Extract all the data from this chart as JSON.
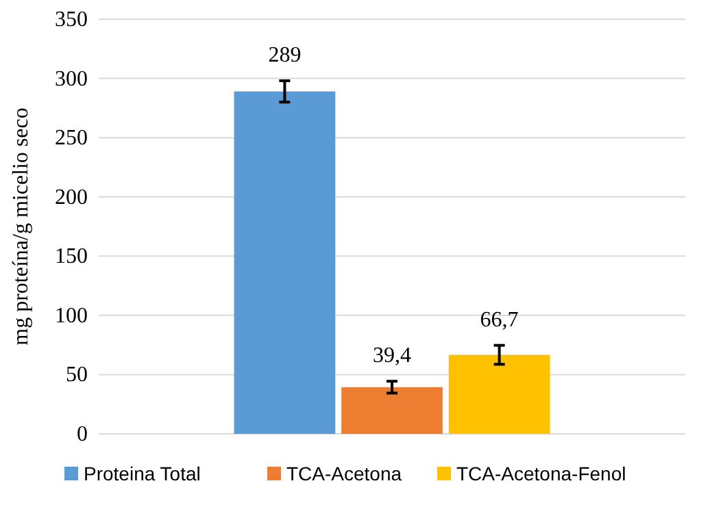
{
  "chart_data": {
    "type": "bar",
    "ylabel": "mg proteína/g micelio seco",
    "categories": [
      null
    ],
    "series": [
      {
        "name": "Proteina Total",
        "color": "#5b9bd5",
        "values": [
          289
        ],
        "errors": [
          9
        ],
        "value_labels": [
          "289"
        ]
      },
      {
        "name": "TCA-Acetona",
        "color": "#ed7d31",
        "values": [
          39.4
        ],
        "errors": [
          5
        ],
        "value_labels": [
          "39,4"
        ]
      },
      {
        "name": "TCA-Acetona-Fenol",
        "color": "#ffc000",
        "values": [
          66.7
        ],
        "errors": [
          8
        ],
        "value_labels": [
          "66,7"
        ]
      }
    ],
    "ylim": [
      0,
      350
    ],
    "yticks": [
      0,
      50,
      100,
      150,
      200,
      250,
      300,
      350
    ],
    "grid": "y",
    "legend": "bottom"
  }
}
